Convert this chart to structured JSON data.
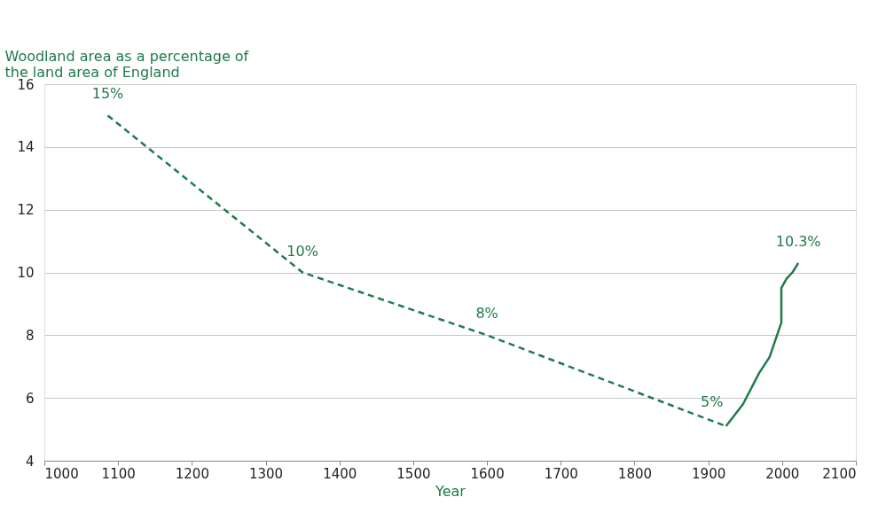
{
  "chart_data": {
    "type": "line",
    "xlabel": "Year",
    "ylabel": "Woodland area as a percentage of the land area of England",
    "series": [
      {
        "color": "#1e7b4a",
        "line_style": "dashed",
        "x": [
          1086,
          1350,
          1600,
          1924
        ],
        "values": [
          15,
          10,
          8,
          5.1
        ]
      },
      {
        "color": "#1e7b4a",
        "line_style": "solid",
        "x": [
          1924,
          1947,
          1969,
          1983,
          1999,
          1999,
          2006,
          2014,
          2022
        ],
        "values": [
          5.1,
          5.8,
          6.8,
          7.3,
          8.4,
          9.5,
          9.8,
          10.0,
          10.3
        ]
      }
    ],
    "annotations": [
      {
        "text": "15%",
        "x": 1086,
        "y": 15
      },
      {
        "text": "10%",
        "x": 1350,
        "y": 10
      },
      {
        "text": "8%",
        "x": 1600,
        "y": 8
      },
      {
        "text": "5%",
        "x": 1905,
        "y": 5.2
      },
      {
        "text": "10.3%",
        "x": 2022,
        "y": 10.3
      }
    ],
    "xlim": [
      1000,
      2100
    ],
    "xticks": [
      1000,
      1100,
      1200,
      1300,
      1400,
      1500,
      1600,
      1700,
      1800,
      1900,
      2000,
      2100
    ],
    "ylim": [
      4,
      16
    ],
    "yticks": [
      4,
      6,
      8,
      10,
      12,
      14,
      16
    ],
    "grid": "y",
    "marker": "none"
  }
}
